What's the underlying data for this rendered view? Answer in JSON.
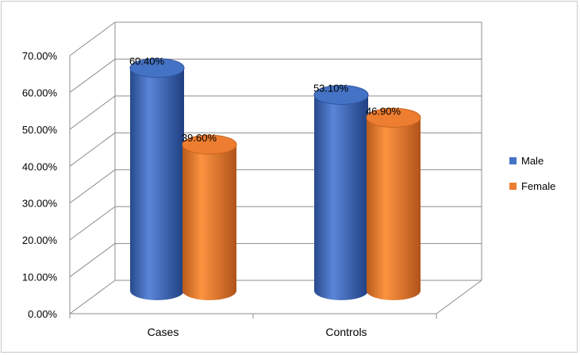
{
  "chart_data": {
    "type": "bar",
    "style": "3d-cylinder",
    "categories": [
      "Cases",
      "Controls"
    ],
    "series": [
      {
        "name": "Male",
        "values": [
          60.4,
          53.1
        ],
        "color": "#4472C4"
      },
      {
        "name": "Female",
        "values": [
          39.6,
          46.9
        ],
        "color": "#ED7D31"
      }
    ],
    "data_labels": [
      [
        "60.40%",
        "53.10%"
      ],
      [
        "39.60%",
        "46.90%"
      ]
    ],
    "y_ticks": [
      "0.00%",
      "10.00%",
      "20.00%",
      "30.00%",
      "40.00%",
      "50.00%",
      "60.00%",
      "70.00%"
    ],
    "ylim": [
      0,
      70
    ],
    "grid": true,
    "legend_position": "right",
    "title": "",
    "xlabel": "",
    "ylabel": ""
  }
}
